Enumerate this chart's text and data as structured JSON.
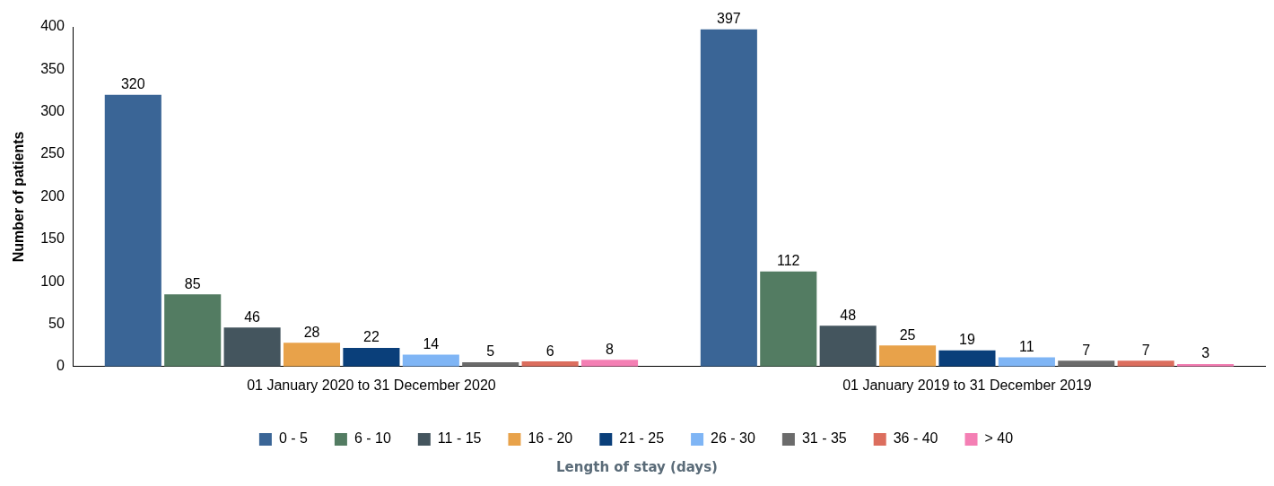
{
  "chart_data": {
    "type": "bar",
    "xlabel": "Length of stay (days)",
    "ylabel": "Number of patients",
    "categories": [
      "01 January 2020 to 31 December 2020",
      "01 January 2019 to 31 December 2019"
    ],
    "series": [
      {
        "name": "0 - 5",
        "color": "#3a6596",
        "values": [
          320,
          397
        ]
      },
      {
        "name": "6 - 10",
        "color": "#537c62",
        "values": [
          85,
          112
        ]
      },
      {
        "name": "11 - 15",
        "color": "#44555e",
        "values": [
          46,
          48
        ]
      },
      {
        "name": "16 - 20",
        "color": "#e8a24a",
        "values": [
          28,
          25
        ]
      },
      {
        "name": "21 - 25",
        "color": "#0a3f7a",
        "values": [
          22,
          19
        ]
      },
      {
        "name": "26 - 30",
        "color": "#7fb5f5",
        "values": [
          14,
          11
        ]
      },
      {
        "name": "31 - 35",
        "color": "#6b6b6b",
        "values": [
          5,
          7
        ]
      },
      {
        "name": "36 - 40",
        "color": "#dc6e5e",
        "values": [
          6,
          7
        ]
      },
      {
        "name": "> 40",
        "color": "#f47fb4",
        "values": [
          8,
          3
        ]
      }
    ],
    "ylim": [
      0,
      400
    ],
    "yticks": [
      0,
      50,
      100,
      150,
      200,
      250,
      300,
      350,
      400
    ],
    "grid": false,
    "legend": "bottom",
    "data_labels": true
  }
}
